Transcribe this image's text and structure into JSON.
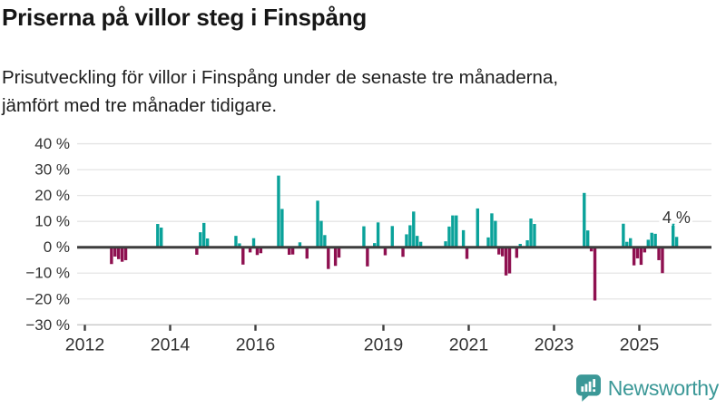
{
  "header": {
    "title": "Priserna på villor steg i Finspång",
    "subtitle_lines": [
      "Prisutveckling för villor i Finspång under de senaste tre månaderna,",
      "jämfört med tre månader tidigare."
    ]
  },
  "chart_data": {
    "type": "bar",
    "title": "Priserna på villor steg i Finspång",
    "subtitle": "Prisutveckling för villor i Finspång under de senaste tre månaderna, jämfört med tre månader tidigare.",
    "unit": "%",
    "ylim": [
      -30,
      40
    ],
    "grid": true,
    "x_ticks": [
      2012,
      2014,
      2016,
      2019,
      2021,
      2023,
      2025
    ],
    "x_tick_labels": [
      "2012",
      "2014",
      "2016",
      "2019",
      "2021",
      "2023",
      "2025"
    ],
    "y_ticks": [
      40,
      30,
      20,
      10,
      0,
      -10,
      -20,
      -30
    ],
    "y_tick_labels": [
      "40 %",
      "30 %",
      "20 %",
      "10 %",
      "0 %",
      "−10 %",
      "−20 %",
      "−30 %"
    ],
    "annotation": {
      "text": "4 %",
      "date": "2025-11",
      "value": 4
    },
    "colors": {
      "positive": "#0aa29a",
      "negative": "#8e1050",
      "zero_line": "#3d3d3d",
      "grid": "#e4e4e4",
      "axis_line": "#cccccc",
      "tick": "#3d3d3d",
      "label": "#333333",
      "annotation": "#333333"
    },
    "series": [
      {
        "date": "2012-08",
        "value": -6.5
      },
      {
        "date": "2012-09",
        "value": -3.6
      },
      {
        "date": "2012-10",
        "value": -4.6
      },
      {
        "date": "2012-11",
        "value": -5.6
      },
      {
        "date": "2012-12",
        "value": -5.0
      },
      {
        "date": "2013-09",
        "value": 9.0
      },
      {
        "date": "2013-10",
        "value": 7.6
      },
      {
        "date": "2014-08",
        "value": -2.9
      },
      {
        "date": "2014-09",
        "value": 5.8
      },
      {
        "date": "2014-10",
        "value": 9.4
      },
      {
        "date": "2014-11",
        "value": 3.4
      },
      {
        "date": "2015-07",
        "value": 4.4
      },
      {
        "date": "2015-08",
        "value": 1.5
      },
      {
        "date": "2015-09",
        "value": -6.7
      },
      {
        "date": "2015-11",
        "value": -2.0
      },
      {
        "date": "2015-12",
        "value": 3.5
      },
      {
        "date": "2016-01",
        "value": -3.0
      },
      {
        "date": "2016-02",
        "value": -2.3
      },
      {
        "date": "2016-07",
        "value": 27.7
      },
      {
        "date": "2016-08",
        "value": 14.8
      },
      {
        "date": "2016-10",
        "value": -2.9
      },
      {
        "date": "2016-11",
        "value": -2.8
      },
      {
        "date": "2017-01",
        "value": 1.9
      },
      {
        "date": "2017-03",
        "value": -4.4
      },
      {
        "date": "2017-06",
        "value": 18.0
      },
      {
        "date": "2017-07",
        "value": 10.2
      },
      {
        "date": "2017-08",
        "value": 4.7
      },
      {
        "date": "2017-09",
        "value": -8.4
      },
      {
        "date": "2017-11",
        "value": -7.2
      },
      {
        "date": "2017-12",
        "value": -4.0
      },
      {
        "date": "2018-07",
        "value": 8.1
      },
      {
        "date": "2018-08",
        "value": -7.4
      },
      {
        "date": "2018-10",
        "value": 1.6
      },
      {
        "date": "2018-11",
        "value": 9.6
      },
      {
        "date": "2019-01",
        "value": -3.1
      },
      {
        "date": "2019-03",
        "value": 8.2
      },
      {
        "date": "2019-06",
        "value": -3.7
      },
      {
        "date": "2019-07",
        "value": 5.0
      },
      {
        "date": "2019-08",
        "value": 8.5
      },
      {
        "date": "2019-09",
        "value": 13.8
      },
      {
        "date": "2019-10",
        "value": 4.4
      },
      {
        "date": "2019-11",
        "value": 2.1
      },
      {
        "date": "2020-06",
        "value": 2.3
      },
      {
        "date": "2020-07",
        "value": 8.0
      },
      {
        "date": "2020-08",
        "value": 12.3
      },
      {
        "date": "2020-09",
        "value": 12.3
      },
      {
        "date": "2020-11",
        "value": 6.6
      },
      {
        "date": "2020-12",
        "value": -4.5
      },
      {
        "date": "2021-03",
        "value": 15.0
      },
      {
        "date": "2021-06",
        "value": 3.8
      },
      {
        "date": "2021-07",
        "value": 13.1
      },
      {
        "date": "2021-08",
        "value": 10.2
      },
      {
        "date": "2021-09",
        "value": -2.8
      },
      {
        "date": "2021-10",
        "value": -3.5
      },
      {
        "date": "2021-11",
        "value": -10.9
      },
      {
        "date": "2021-12",
        "value": -10.1
      },
      {
        "date": "2022-02",
        "value": -4.1
      },
      {
        "date": "2022-03",
        "value": 1.3
      },
      {
        "date": "2022-05",
        "value": 2.7
      },
      {
        "date": "2022-06",
        "value": 11.1
      },
      {
        "date": "2022-07",
        "value": 9.0
      },
      {
        "date": "2023-09",
        "value": 21.0
      },
      {
        "date": "2023-10",
        "value": 6.5
      },
      {
        "date": "2023-11",
        "value": -1.6
      },
      {
        "date": "2023-12",
        "value": -20.6
      },
      {
        "date": "2024-08",
        "value": 9.1
      },
      {
        "date": "2024-09",
        "value": 2.1
      },
      {
        "date": "2024-10",
        "value": 3.5
      },
      {
        "date": "2024-11",
        "value": -7.0
      },
      {
        "date": "2024-12",
        "value": -4.3
      },
      {
        "date": "2025-01",
        "value": -6.8
      },
      {
        "date": "2025-02",
        "value": -2.0
      },
      {
        "date": "2025-03",
        "value": 2.9
      },
      {
        "date": "2025-04",
        "value": 5.6
      },
      {
        "date": "2025-05",
        "value": 5.2
      },
      {
        "date": "2025-06",
        "value": -5.0
      },
      {
        "date": "2025-07",
        "value": -10.0
      },
      {
        "date": "2025-10",
        "value": 9.1
      },
      {
        "date": "2025-11",
        "value": 4.0
      }
    ]
  },
  "footer": {
    "logo_text": "Newsworthy",
    "logo_color": "#3b9897"
  }
}
